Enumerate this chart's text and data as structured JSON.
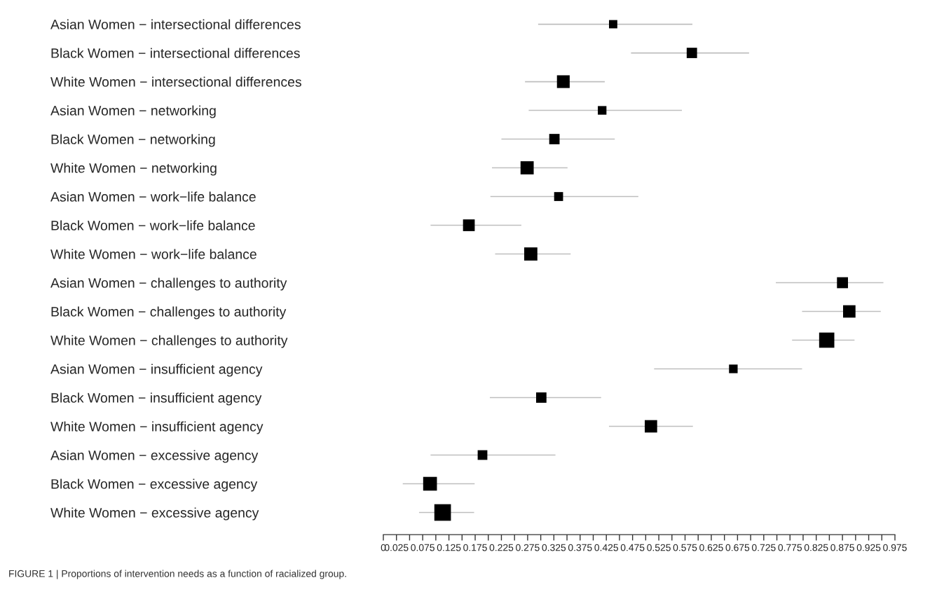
{
  "chart_data": {
    "type": "scatter",
    "orientation": "horizontal",
    "categories": [
      "Asian Women − intersectional differences",
      "Black Women − intersectional differences",
      "White Women − intersectional differences",
      "Asian Women − networking",
      "Black Women − networking",
      "White Women − networking",
      "Asian Women − work−life balance",
      "Black Women − work−life balance",
      "White Women − work−life balance",
      "Asian Women − challenges to authority",
      "Black Women − challenges to authority",
      "White Women − challenges to authority",
      "Asian Women − insufficient agency",
      "Black Women − insufficient agency",
      "White Women − insufficient agency",
      "Asian Women − excessive agency",
      "Black Women − excessive agency",
      "White Women − excessive agency"
    ],
    "values": [
      0.438,
      0.588,
      0.343,
      0.417,
      0.326,
      0.274,
      0.334,
      0.163,
      0.281,
      0.875,
      0.888,
      0.845,
      0.667,
      0.301,
      0.51,
      0.189,
      0.089,
      0.113
    ],
    "errors": [
      [
        0.295,
        0.589
      ],
      [
        0.472,
        0.697
      ],
      [
        0.27,
        0.422
      ],
      [
        0.277,
        0.569
      ],
      [
        0.225,
        0.441
      ],
      [
        0.207,
        0.351
      ],
      [
        0.204,
        0.486
      ],
      [
        0.09,
        0.263
      ],
      [
        0.213,
        0.357
      ],
      [
        0.748,
        0.953
      ],
      [
        0.798,
        0.948
      ],
      [
        0.779,
        0.898
      ],
      [
        0.516,
        0.798
      ],
      [
        0.203,
        0.415
      ],
      [
        0.43,
        0.59
      ],
      [
        0.09,
        0.328
      ],
      [
        0.037,
        0.174
      ],
      [
        0.068,
        0.173
      ]
    ],
    "sizes": [
      0.25,
      0.39,
      0.59,
      0.27,
      0.39,
      0.63,
      0.29,
      0.5,
      0.63,
      0.44,
      0.56,
      0.84,
      0.27,
      0.39,
      0.56,
      0.34,
      0.69,
      1
    ],
    "color": "#000000",
    "marker": "square",
    "grid": false,
    "xlim": [
      0,
      0.975
    ],
    "xticks": [
      0,
      0.025,
      {
        "value": 0.05,
        "label": null
      },
      0.075,
      {
        "value": 0.1,
        "label": null
      },
      0.125,
      {
        "value": 0.15,
        "label": null
      },
      0.175,
      {
        "value": 0.2,
        "label": null
      },
      0.225,
      {
        "value": 0.25,
        "label": null
      },
      0.275,
      {
        "value": 0.3,
        "label": null
      },
      0.325,
      {
        "value": 0.35,
        "label": null
      },
      0.375,
      {
        "value": 0.4,
        "label": null
      },
      0.425,
      {
        "value": 0.45,
        "label": null
      },
      0.475,
      {
        "value": 0.5,
        "label": null
      },
      0.525,
      {
        "value": 0.55,
        "label": null
      },
      0.575,
      {
        "value": 0.6,
        "label": null
      },
      0.625,
      {
        "value": 0.65,
        "label": null
      },
      0.675,
      {
        "value": 0.7,
        "label": null
      },
      0.725,
      {
        "value": 0.75,
        "label": null
      },
      0.775,
      {
        "value": 0.8,
        "label": null
      },
      0.825,
      {
        "value": 0.85,
        "label": null
      },
      0.875,
      {
        "value": 0.9,
        "label": null
      },
      0.925,
      {
        "value": 0.95,
        "label": null
      },
      0.975
    ],
    "annotations": [
      "FIGURE 1 | Proportions of intervention needs as a function of racialized group."
    ]
  }
}
